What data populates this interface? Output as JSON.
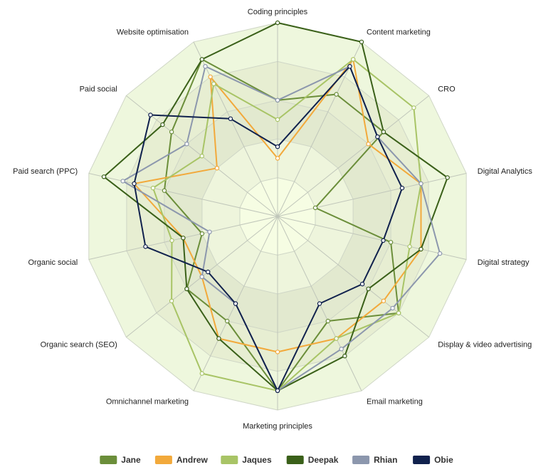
{
  "chart_data": {
    "type": "radar",
    "axes": [
      "Coding principles",
      "Content marketing",
      "CRO",
      "Digital Analytics",
      "Digital strategy",
      "Display & video advertising",
      "Email marketing",
      "Marketing principles",
      "Omnichannel marketing",
      "Organic search (SEO)",
      "Organic social",
      "Paid search (PPC)",
      "Paid social",
      "Website optimisation"
    ],
    "rmax": 5,
    "rings": 5,
    "grid": true,
    "legend_position": "bottom",
    "series": [
      {
        "name": "Jane",
        "color": "#6b8e3a",
        "values": [
          3.0,
          3.5,
          3.5,
          1.0,
          3.0,
          4.0,
          3.0,
          4.5,
          3.0,
          3.0,
          2.0,
          3.0,
          3.5,
          4.5
        ]
      },
      {
        "name": "Andrew",
        "color": "#f2a93b",
        "values": [
          1.5,
          4.5,
          3.0,
          3.8,
          3.8,
          3.5,
          3.5,
          3.5,
          3.5,
          2.5,
          2.5,
          3.8,
          2.0,
          4.0
        ]
      },
      {
        "name": "Jaques",
        "color": "#a8c466",
        "values": [
          2.5,
          4.5,
          4.5,
          3.8,
          3.5,
          4.0,
          3.5,
          4.5,
          4.5,
          3.5,
          2.8,
          3.3,
          2.5,
          3.8
        ]
      },
      {
        "name": "Deepak",
        "color": "#3a6019",
        "values": [
          5.0,
          5.0,
          3.5,
          4.5,
          3.8,
          3.0,
          4.0,
          4.5,
          3.5,
          3.0,
          2.5,
          4.6,
          3.8,
          4.5
        ]
      },
      {
        "name": "Rhian",
        "color": "#8c97ad",
        "values": [
          3.0,
          4.3,
          3.3,
          3.8,
          4.3,
          3.8,
          3.8,
          4.5,
          2.5,
          2.5,
          1.8,
          4.1,
          3.0,
          4.3
        ]
      },
      {
        "name": "Obie",
        "color": "#10214d",
        "values": [
          1.8,
          4.3,
          3.3,
          3.3,
          2.8,
          2.8,
          2.5,
          4.5,
          2.5,
          2.3,
          3.5,
          3.8,
          4.2,
          2.8
        ]
      }
    ]
  }
}
